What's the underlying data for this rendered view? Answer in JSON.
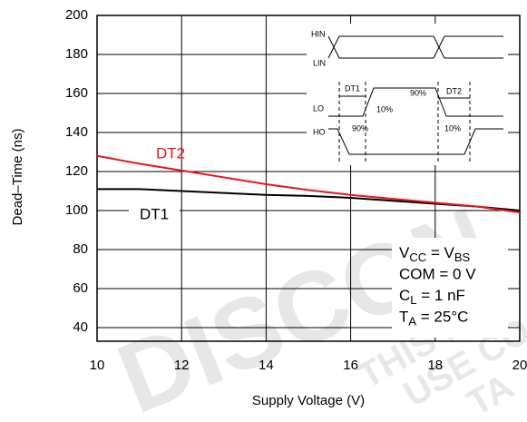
{
  "chart_data": {
    "type": "line",
    "x_label": "Supply Voltage (V)",
    "y_label": "Dead–Time (ns)",
    "x": [
      10,
      11,
      12,
      13,
      14,
      15,
      16,
      17,
      18,
      19,
      20
    ],
    "series": [
      {
        "name": "DT1",
        "color": "#000000",
        "values": [
          111,
          111,
          110,
          109,
          108,
          107.5,
          106.5,
          105,
          103.5,
          102,
          100
        ]
      },
      {
        "name": "DT2",
        "color": "#e8141b",
        "values": [
          128,
          124,
          120.5,
          117,
          113.5,
          110.5,
          108,
          106,
          104,
          102,
          99
        ]
      }
    ],
    "xlim": [
      10,
      20
    ],
    "ylim": [
      33,
      200
    ],
    "xticks": [
      10,
      12,
      14,
      16,
      18,
      20
    ],
    "yticks": [
      40,
      60,
      80,
      100,
      120,
      140,
      160,
      180,
      200
    ],
    "grid": true,
    "conditions": [
      [
        "V",
        "CC",
        " = V",
        "BS"
      ],
      [
        "COM = 0 V"
      ],
      [
        "C",
        "L",
        " = 1 nF"
      ],
      [
        "T",
        "A",
        " = 25°C"
      ]
    ],
    "inset": {
      "hin": "HIN",
      "lin": "LIN",
      "lo": "LO",
      "ho": "HO",
      "dt1": "DT1",
      "dt2": "DT2",
      "p90a": "90%",
      "p10a": "10%",
      "p90b": "90%",
      "p10b": "10%"
    },
    "watermark": [
      "DISCON",
      "THIS NO",
      "USE CO",
      "TA"
    ]
  }
}
